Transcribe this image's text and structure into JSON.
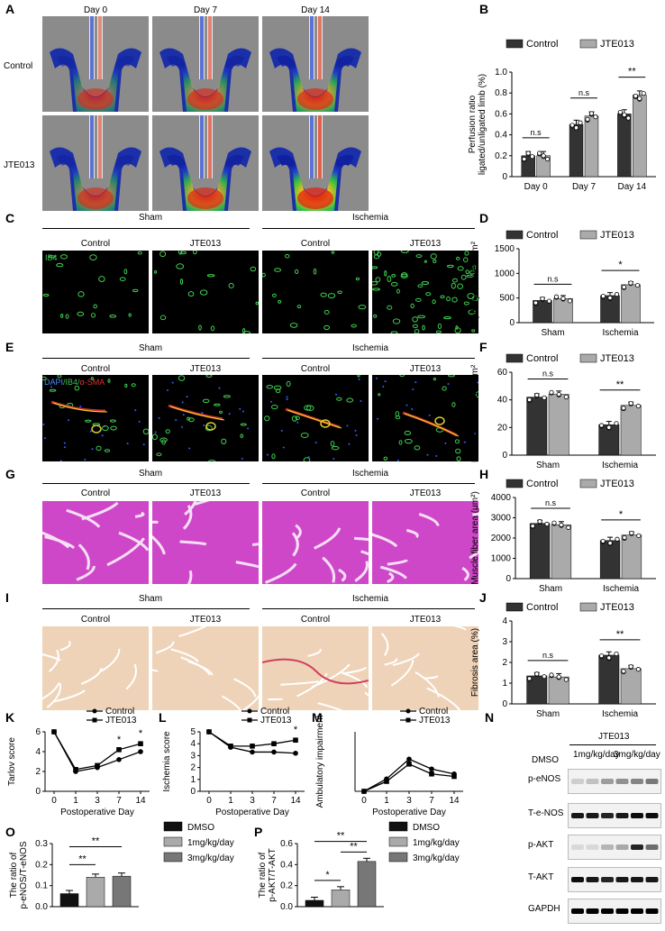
{
  "panels": {
    "A": "A",
    "B": "B",
    "C": "C",
    "D": "D",
    "E": "E",
    "F": "F",
    "G": "G",
    "H": "H",
    "I": "I",
    "J": "J",
    "K": "K",
    "L": "L",
    "M": "M",
    "N": "N",
    "O": "O",
    "P": "P"
  },
  "panelA": {
    "days": [
      "Day 0",
      "Day 7",
      "Day 14"
    ],
    "rows": [
      "Control",
      "JTE013"
    ]
  },
  "groupHeaders": {
    "sham": "Sham",
    "ischemia": "Ischemia",
    "control": "Control",
    "jte": "JTE013"
  },
  "stainC": "IB4",
  "stainE": {
    "dapi": "DAPI",
    "ib4": "/IB4/",
    "sma": "α-SMA"
  },
  "colors": {
    "control": "#333333",
    "jte": "#aaaaaa",
    "dmso": "#111111",
    "low": "#aaaaaa",
    "high": "#777777"
  },
  "legend": {
    "control": "Control",
    "jte": "JTE013",
    "dmso": "DMSO",
    "low": "1mg/kg/day",
    "high": "3mg/kg/day"
  },
  "panelN": {
    "top": "JTE013",
    "lanes": [
      "DMSO",
      "1mg/kg/day",
      "3mg/kg/day"
    ],
    "bands": [
      "p-eNOS",
      "T-e-NOS",
      "p-AKT",
      "T-AKT",
      "GAPDH"
    ]
  },
  "chart_data": [
    {
      "id": "B",
      "type": "bar",
      "categories": [
        "Day 0",
        "Day 7",
        "Day 14"
      ],
      "series": [
        {
          "name": "Control",
          "values": [
            0.2,
            0.5,
            0.6
          ]
        },
        {
          "name": "JTE013",
          "values": [
            0.2,
            0.58,
            0.78
          ]
        }
      ],
      "ylabel": "Perfusion ratio ligated/unligated limb (%)",
      "ylabel_lines": [
        "Perfusion ratio",
        "ligated/unligated limb (%)"
      ],
      "ylim": [
        0,
        1.0
      ],
      "yticks": [
        "0",
        "0.2",
        "0.4",
        "0.6",
        "0.8",
        "1.0"
      ],
      "sig": [
        "n.s",
        "n.s",
        "**"
      ]
    },
    {
      "id": "D",
      "type": "bar",
      "categories": [
        "Sham",
        "Ischemia"
      ],
      "series": [
        {
          "name": "Control",
          "values": [
            450,
            550
          ]
        },
        {
          "name": "JTE013",
          "values": [
            490,
            770
          ]
        }
      ],
      "ylabel": "Capillary vessels/mm²",
      "ylim": [
        0,
        1500
      ],
      "yticks": [
        "0",
        "500",
        "1000",
        "1500"
      ],
      "sig": [
        "n.s",
        "*"
      ]
    },
    {
      "id": "F",
      "type": "bar",
      "categories": [
        "Sham",
        "Ischemia"
      ],
      "series": [
        {
          "name": "Control",
          "values": [
            42,
            22
          ]
        },
        {
          "name": "JTE013",
          "values": [
            44,
            36
          ]
        }
      ],
      "ylabel": "Number of arteriole/mm²",
      "ylim": [
        0,
        60
      ],
      "yticks": [
        "0",
        "20",
        "40",
        "60"
      ],
      "sig": [
        "n.s",
        "**"
      ]
    },
    {
      "id": "H",
      "type": "bar",
      "categories": [
        "Sham",
        "Ischemia"
      ],
      "series": [
        {
          "name": "Control",
          "values": [
            2720,
            1880
          ]
        },
        {
          "name": "JTE013",
          "values": [
            2650,
            2150
          ]
        }
      ],
      "ylabel": "Muscle fiber area (μm²)",
      "ylim": [
        0,
        4000
      ],
      "yticks": [
        "0",
        "1000",
        "2000",
        "3000",
        "4000"
      ],
      "sig": [
        "n.s",
        "*"
      ]
    },
    {
      "id": "J",
      "type": "bar",
      "categories": [
        "Sham",
        "Ischemia"
      ],
      "series": [
        {
          "name": "Control",
          "values": [
            1.35,
            2.35
          ]
        },
        {
          "name": "JTE013",
          "values": [
            1.3,
            1.7
          ]
        }
      ],
      "ylabel": "Fibrosis area (%)",
      "ylim": [
        0,
        4
      ],
      "yticks": [
        "0",
        "1",
        "2",
        "3",
        "4"
      ],
      "sig": [
        "n.s",
        "**"
      ]
    },
    {
      "id": "K",
      "type": "line",
      "x": [
        0,
        1,
        3,
        7,
        14
      ],
      "xticks": [
        "0",
        "1",
        "3",
        "7",
        "14"
      ],
      "series": [
        {
          "name": "Control",
          "values": [
            6,
            2.0,
            2.4,
            3.2,
            4.0
          ]
        },
        {
          "name": "JTE013",
          "values": [
            6,
            2.2,
            2.6,
            4.2,
            4.8
          ]
        }
      ],
      "xlabel": "Postoperative Day",
      "ylabel": "Tarlov score",
      "ylim": [
        0,
        6
      ],
      "yticks": [
        "0",
        "2",
        "4",
        "6"
      ],
      "sig_labels": [
        "*",
        "*"
      ]
    },
    {
      "id": "L",
      "type": "line",
      "x": [
        0,
        1,
        3,
        7,
        14
      ],
      "xticks": [
        "0",
        "1",
        "3",
        "7",
        "14"
      ],
      "series": [
        {
          "name": "Control",
          "values": [
            5,
            3.7,
            3.3,
            3.3,
            3.2
          ]
        },
        {
          "name": "JTE013",
          "values": [
            5,
            3.8,
            3.8,
            4.0,
            4.3
          ]
        }
      ],
      "xlabel": "Postoperative Day",
      "ylabel": "Ischemia score",
      "ylim": [
        0,
        5
      ],
      "yticks": [
        "0",
        "1",
        "2",
        "3",
        "4",
        "5"
      ],
      "sig_labels": [
        "*"
      ]
    },
    {
      "id": "M",
      "type": "line",
      "x": [
        0,
        1,
        3,
        7,
        14
      ],
      "xticks": [
        "0",
        "1",
        "3",
        "7",
        "14"
      ],
      "series": [
        {
          "name": "Control",
          "values": [
            0,
            0.25,
            0.65,
            0.45,
            0.35
          ]
        },
        {
          "name": "JTE013",
          "values": [
            0,
            0.2,
            0.55,
            0.35,
            0.3
          ]
        }
      ],
      "xlabel": "Postoperative Day",
      "ylabel": "Ambulatory impairment",
      "ylim": [
        0,
        1.2
      ]
    },
    {
      "id": "O",
      "type": "bar",
      "categories": [
        "DMSO",
        "1mg/kg/day",
        "3mg/kg/day"
      ],
      "values": [
        0.062,
        0.14,
        0.145
      ],
      "ylabel": "The ratio of p-eNOS/T-eNOS",
      "ylabel_lines": [
        "The ratio of",
        "p-eNOS/T-eNOS"
      ],
      "ylim": [
        0,
        0.3
      ],
      "yticks": [
        "0.0",
        "0.1",
        "0.2",
        "0.3"
      ],
      "sig_labels": [
        "**",
        "**"
      ]
    },
    {
      "id": "P",
      "type": "bar",
      "categories": [
        "DMSO",
        "1mg/kg/day",
        "3mg/kg/day"
      ],
      "values": [
        0.06,
        0.16,
        0.43
      ],
      "ylabel": "The ratio of p-AKT/T-AKT",
      "ylabel_lines": [
        "The ratio of",
        "p-AKT/T-AKT"
      ],
      "ylim": [
        0,
        0.6
      ],
      "yticks": [
        "0.0",
        "0.2",
        "0.4",
        "0.6"
      ],
      "sig_labels": [
        "*",
        "**",
        "**"
      ]
    }
  ]
}
